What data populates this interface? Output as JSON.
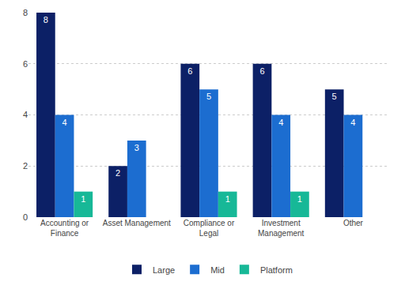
{
  "chart_data": {
    "type": "bar",
    "categories": [
      "Accounting or Finance",
      "Asset Management",
      "Compliance or Legal",
      "Investment Management",
      "Other"
    ],
    "series": [
      {
        "name": "Large",
        "color": "#0c2066",
        "values": [
          8,
          2,
          6,
          6,
          5
        ]
      },
      {
        "name": "Mid",
        "color": "#1c6dd0",
        "values": [
          4,
          3,
          5,
          4,
          4
        ]
      },
      {
        "name": "Platform",
        "color": "#17b897",
        "values": [
          1,
          null,
          1,
          1,
          null
        ]
      }
    ],
    "ylim": [
      0,
      8
    ],
    "yticks": [
      0,
      2,
      4,
      6,
      8
    ],
    "grid": true,
    "data_labels": true,
    "legend": "bottom"
  }
}
